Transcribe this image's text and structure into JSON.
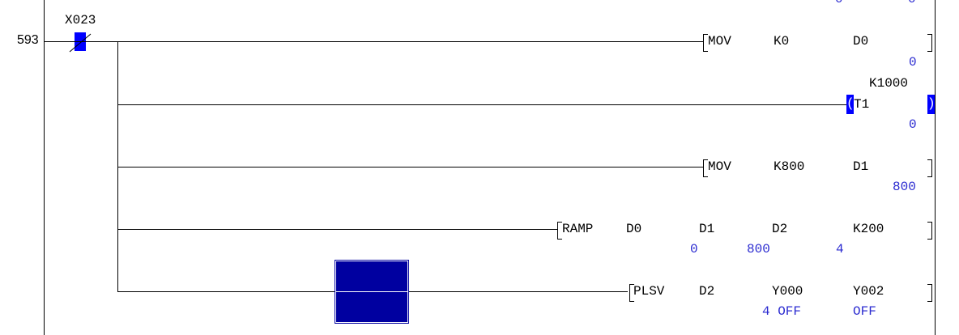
{
  "step_number": "593",
  "colors": {
    "cursor": "#0000a0",
    "value": "#2a2ad0",
    "contact_highlight": "#0000ff"
  },
  "top_partial_values": [
    "0",
    "0"
  ],
  "contact": {
    "device": "X023",
    "type": "normally-closed"
  },
  "rungs": [
    {
      "instruction": "MOV",
      "operands": [
        "K0",
        "D0"
      ],
      "values": [
        "0"
      ]
    },
    {
      "instruction": "T1",
      "setting": "K1000",
      "type": "coil",
      "values": [
        "0"
      ]
    },
    {
      "instruction": "MOV",
      "operands": [
        "K800",
        "D1"
      ],
      "values": [
        "800"
      ]
    },
    {
      "instruction": "RAMP",
      "operands": [
        "D0",
        "D1",
        "D2",
        "K200"
      ],
      "values": [
        "0",
        "800",
        "4"
      ]
    },
    {
      "instruction": "PLSV",
      "operands": [
        "D2",
        "Y000",
        "Y002"
      ],
      "values": [
        "4 OFF",
        "OFF"
      ]
    }
  ]
}
